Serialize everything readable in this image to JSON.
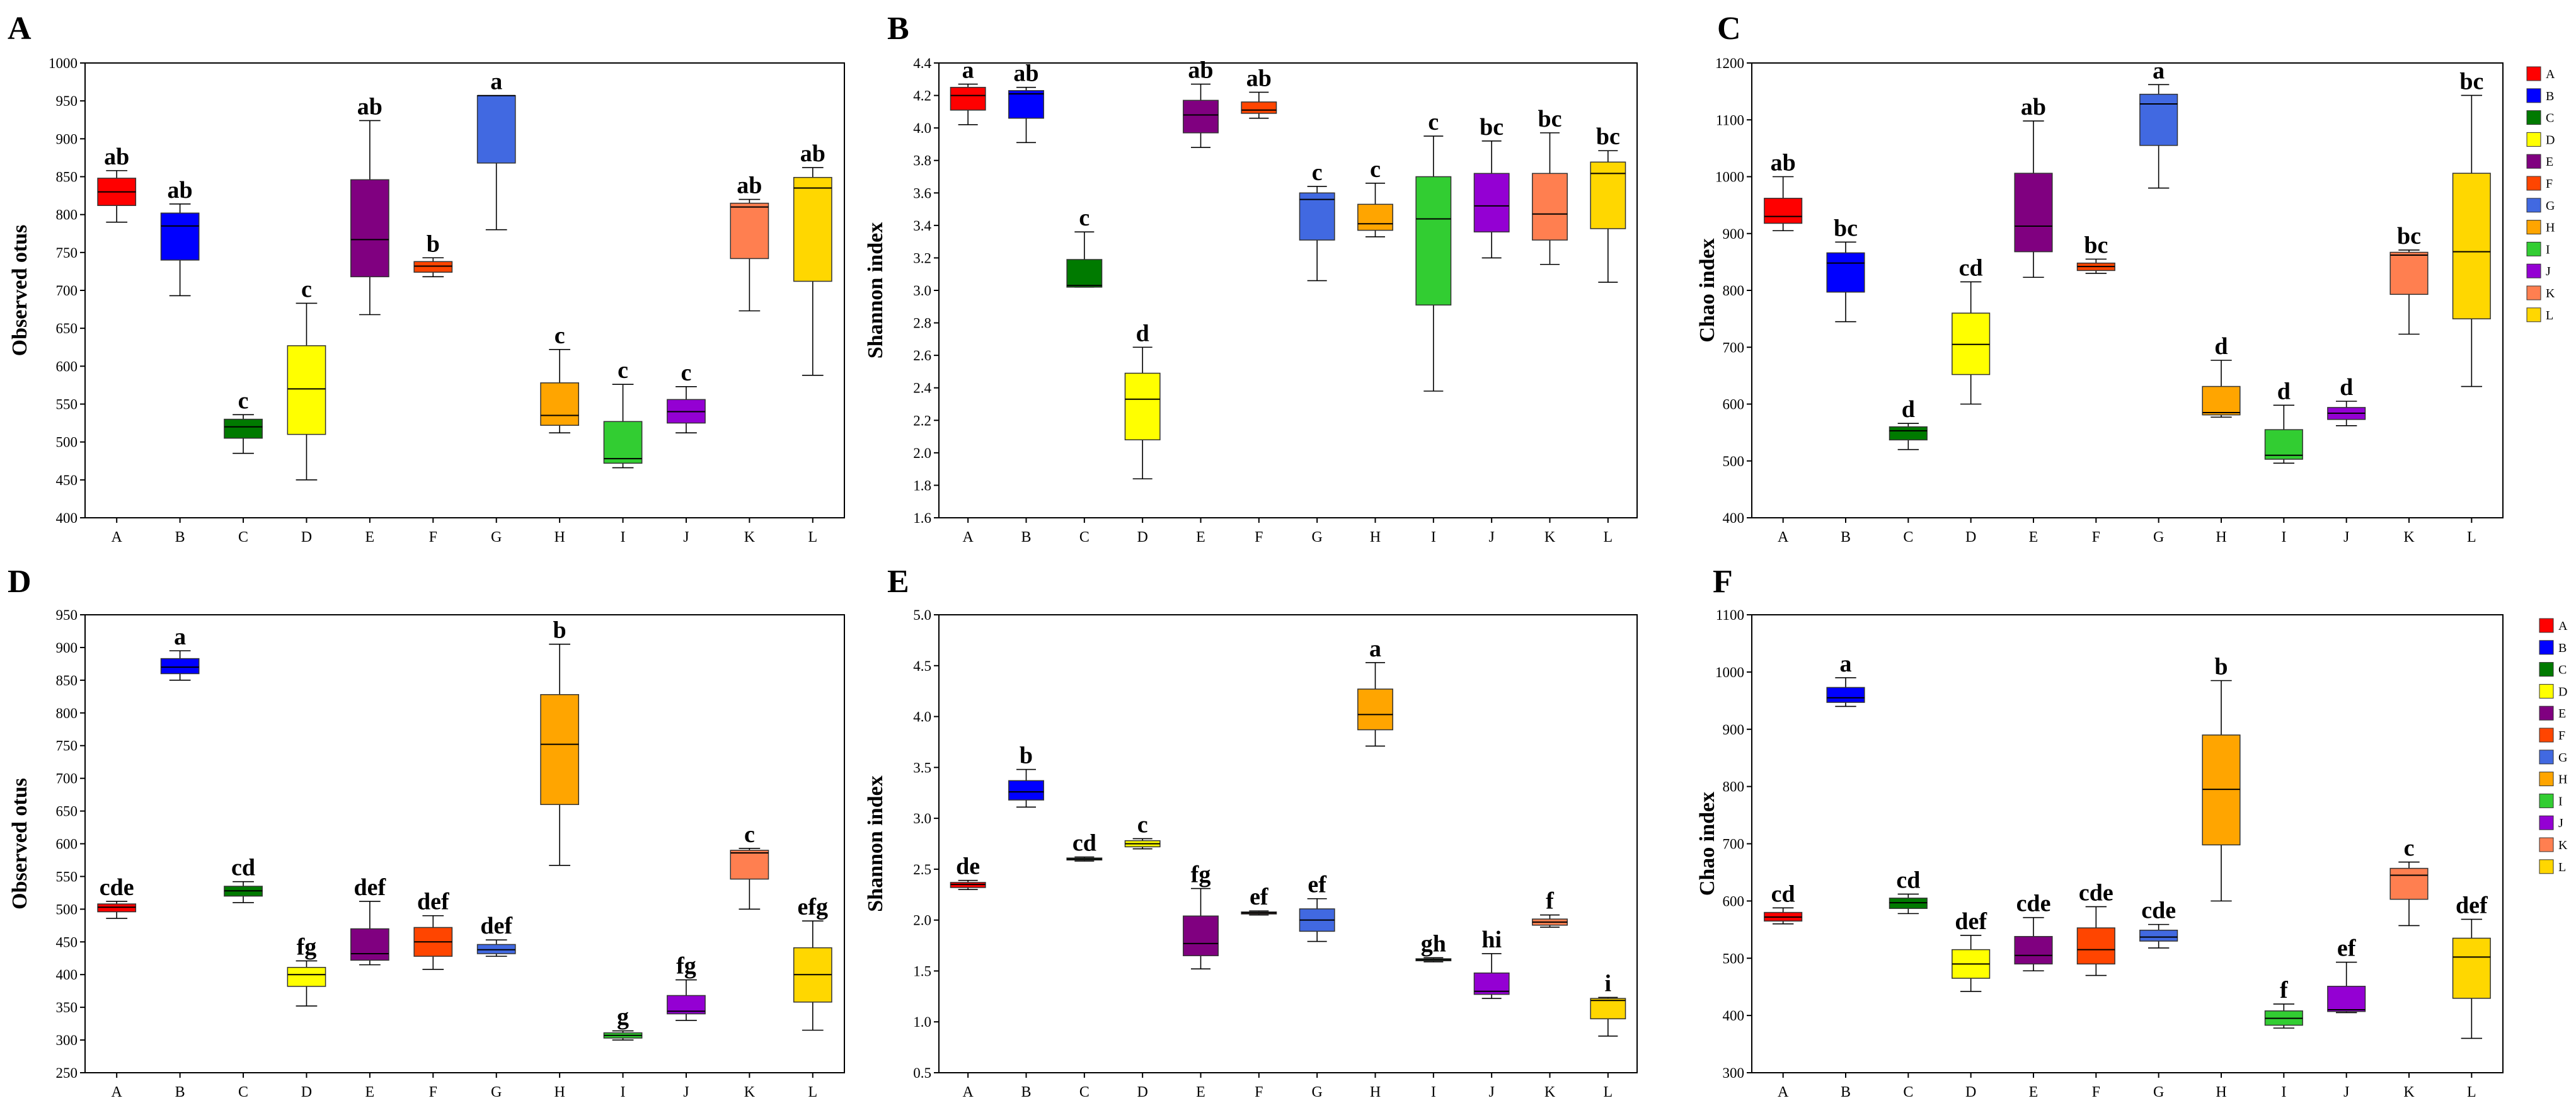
{
  "figure": {
    "panel_letters": [
      "A",
      "B",
      "C",
      "D",
      "E",
      "F"
    ],
    "legend_entries": [
      "A",
      "B",
      "C",
      "D",
      "E",
      "F",
      "G",
      "H",
      "I",
      "J",
      "K",
      "L"
    ],
    "group_colors": {
      "A": "#ff0000",
      "B": "#0000ff",
      "C": "#007a00",
      "D": "#ffff00",
      "E": "#800080",
      "F": "#ff4500",
      "G": "#4169e1",
      "H": "#ffa500",
      "I": "#32cd32",
      "J": "#9400d3",
      "K": "#ff7f50",
      "L": "#ffd700"
    }
  },
  "chart_data": [
    {
      "type": "box",
      "panel": "A",
      "ylabel": "Observed otus",
      "xlabel": "",
      "ylim": [
        400,
        1000
      ],
      "yticks": [
        400,
        450,
        500,
        550,
        600,
        650,
        700,
        750,
        800,
        850,
        900,
        950,
        1000
      ],
      "categories": [
        "A",
        "B",
        "C",
        "D",
        "E",
        "F",
        "G",
        "H",
        "I",
        "J",
        "K",
        "L"
      ],
      "boxes": [
        {
          "min": 790,
          "q1": 812,
          "median": 830,
          "q3": 848,
          "max": 858,
          "label": "ab"
        },
        {
          "min": 693,
          "q1": 740,
          "median": 785,
          "q3": 802,
          "max": 814,
          "label": "ab"
        },
        {
          "min": 485,
          "q1": 505,
          "median": 520,
          "q3": 530,
          "max": 536,
          "label": "c"
        },
        {
          "min": 450,
          "q1": 510,
          "median": 570,
          "q3": 627,
          "max": 683,
          "label": "c"
        },
        {
          "min": 668,
          "q1": 718,
          "median": 767,
          "q3": 846,
          "max": 924,
          "label": "ab"
        },
        {
          "min": 718,
          "q1": 724,
          "median": 732,
          "q3": 738,
          "max": 743,
          "label": "b"
        },
        {
          "min": 780,
          "q1": 868,
          "median": 957,
          "q3": 957,
          "max": 957,
          "label": "a"
        },
        {
          "min": 512,
          "q1": 522,
          "median": 535,
          "q3": 578,
          "max": 622,
          "label": "c"
        },
        {
          "min": 466,
          "q1": 472,
          "median": 478,
          "q3": 527,
          "max": 576,
          "label": "c"
        },
        {
          "min": 512,
          "q1": 525,
          "median": 540,
          "q3": 556,
          "max": 573,
          "label": "c"
        },
        {
          "min": 673,
          "q1": 742,
          "median": 810,
          "q3": 815,
          "max": 820,
          "label": "ab"
        },
        {
          "min": 588,
          "q1": 712,
          "median": 835,
          "q3": 849,
          "max": 862,
          "label": "ab"
        }
      ]
    },
    {
      "type": "box",
      "panel": "B",
      "ylabel": "Shannon index",
      "xlabel": "",
      "ylim": [
        1.6,
        4.4
      ],
      "yticks": [
        1.6,
        1.8,
        2.0,
        2.2,
        2.4,
        2.6,
        2.8,
        3.0,
        3.2,
        3.4,
        3.6,
        3.8,
        4.0,
        4.2,
        4.4
      ],
      "categories": [
        "A",
        "B",
        "C",
        "D",
        "E",
        "F",
        "G",
        "H",
        "I",
        "J",
        "K",
        "L"
      ],
      "boxes": [
        {
          "min": 4.02,
          "q1": 4.11,
          "median": 4.2,
          "q3": 4.25,
          "max": 4.27,
          "label": "a"
        },
        {
          "min": 3.91,
          "q1": 4.06,
          "median": 4.21,
          "q3": 4.23,
          "max": 4.25,
          "label": "ab"
        },
        {
          "min": 3.02,
          "q1": 3.02,
          "median": 3.03,
          "q3": 3.19,
          "max": 3.36,
          "label": "c"
        },
        {
          "min": 1.84,
          "q1": 2.08,
          "median": 2.33,
          "q3": 2.49,
          "max": 2.65,
          "label": "d"
        },
        {
          "min": 3.88,
          "q1": 3.97,
          "median": 4.08,
          "q3": 4.17,
          "max": 4.27,
          "label": "ab"
        },
        {
          "min": 4.06,
          "q1": 4.09,
          "median": 4.11,
          "q3": 4.16,
          "max": 4.22,
          "label": "ab"
        },
        {
          "min": 3.06,
          "q1": 3.31,
          "median": 3.56,
          "q3": 3.6,
          "max": 3.64,
          "label": "c"
        },
        {
          "min": 3.33,
          "q1": 3.37,
          "median": 3.41,
          "q3": 3.53,
          "max": 3.66,
          "label": "c"
        },
        {
          "min": 2.38,
          "q1": 2.91,
          "median": 3.44,
          "q3": 3.7,
          "max": 3.95,
          "label": "c"
        },
        {
          "min": 3.2,
          "q1": 3.36,
          "median": 3.52,
          "q3": 3.72,
          "max": 3.92,
          "label": "bc"
        },
        {
          "min": 3.16,
          "q1": 3.31,
          "median": 3.47,
          "q3": 3.72,
          "max": 3.97,
          "label": "bc"
        },
        {
          "min": 3.05,
          "q1": 3.38,
          "median": 3.72,
          "q3": 3.79,
          "max": 3.86,
          "label": "bc"
        }
      ]
    },
    {
      "type": "box",
      "panel": "C",
      "ylabel": "Chao index",
      "xlabel": "",
      "ylim": [
        400,
        1200
      ],
      "yticks": [
        400,
        500,
        600,
        700,
        800,
        900,
        1000,
        1100,
        1200
      ],
      "categories": [
        "A",
        "B",
        "C",
        "D",
        "E",
        "F",
        "G",
        "H",
        "I",
        "J",
        "K",
        "L"
      ],
      "boxes": [
        {
          "min": 905,
          "q1": 918,
          "median": 930,
          "q3": 962,
          "max": 1000,
          "label": "ab"
        },
        {
          "min": 745,
          "q1": 797,
          "median": 848,
          "q3": 866,
          "max": 885,
          "label": "bc"
        },
        {
          "min": 520,
          "q1": 537,
          "median": 553,
          "q3": 560,
          "max": 566,
          "label": "d"
        },
        {
          "min": 600,
          "q1": 652,
          "median": 705,
          "q3": 760,
          "max": 815,
          "label": "cd"
        },
        {
          "min": 823,
          "q1": 868,
          "median": 913,
          "q3": 1006,
          "max": 1098,
          "label": "ab"
        },
        {
          "min": 830,
          "q1": 835,
          "median": 842,
          "q3": 848,
          "max": 855,
          "label": "bc"
        },
        {
          "min": 980,
          "q1": 1055,
          "median": 1128,
          "q3": 1145,
          "max": 1162,
          "label": "a"
        },
        {
          "min": 577,
          "q1": 581,
          "median": 585,
          "q3": 631,
          "max": 677,
          "label": "d"
        },
        {
          "min": 496,
          "q1": 503,
          "median": 510,
          "q3": 555,
          "max": 598,
          "label": "d"
        },
        {
          "min": 562,
          "q1": 573,
          "median": 584,
          "q3": 594,
          "max": 605,
          "label": "d"
        },
        {
          "min": 723,
          "q1": 793,
          "median": 862,
          "q3": 867,
          "max": 871,
          "label": "bc"
        },
        {
          "min": 631,
          "q1": 750,
          "median": 868,
          "q3": 1006,
          "max": 1143,
          "label": "bc"
        }
      ]
    },
    {
      "type": "box",
      "panel": "D",
      "ylabel": "Observed otus",
      "xlabel": "",
      "ylim": [
        250,
        950
      ],
      "yticks": [
        250,
        300,
        350,
        400,
        450,
        500,
        550,
        600,
        650,
        700,
        750,
        800,
        850,
        900,
        950
      ],
      "categories": [
        "A",
        "B",
        "C",
        "D",
        "E",
        "F",
        "G",
        "H",
        "I",
        "J",
        "K",
        "L"
      ],
      "boxes": [
        {
          "min": 486,
          "q1": 496,
          "median": 503,
          "q3": 508,
          "max": 512,
          "label": "cde"
        },
        {
          "min": 850,
          "q1": 860,
          "median": 870,
          "q3": 883,
          "max": 895,
          "label": "a"
        },
        {
          "min": 510,
          "q1": 520,
          "median": 528,
          "q3": 535,
          "max": 542,
          "label": "cd"
        },
        {
          "min": 352,
          "q1": 382,
          "median": 400,
          "q3": 411,
          "max": 421,
          "label": "fg"
        },
        {
          "min": 415,
          "q1": 422,
          "median": 432,
          "q3": 470,
          "max": 512,
          "label": "def"
        },
        {
          "min": 408,
          "q1": 428,
          "median": 450,
          "q3": 472,
          "max": 490,
          "label": "def"
        },
        {
          "min": 428,
          "q1": 432,
          "median": 438,
          "q3": 446,
          "max": 453,
          "label": "def"
        },
        {
          "min": 567,
          "q1": 660,
          "median": 752,
          "q3": 828,
          "max": 905,
          "label": "b"
        },
        {
          "min": 300,
          "q1": 303,
          "median": 307,
          "q3": 311,
          "max": 314,
          "label": "g"
        },
        {
          "min": 330,
          "q1": 340,
          "median": 344,
          "q3": 368,
          "max": 392,
          "label": "fg"
        },
        {
          "min": 500,
          "q1": 546,
          "median": 586,
          "q3": 590,
          "max": 593,
          "label": "c"
        },
        {
          "min": 315,
          "q1": 358,
          "median": 400,
          "q3": 441,
          "max": 482,
          "label": "efg"
        }
      ]
    },
    {
      "type": "box",
      "panel": "E",
      "ylabel": "Shannon index",
      "xlabel": "",
      "ylim": [
        0.5,
        5.0
      ],
      "yticks": [
        0.5,
        1.0,
        1.5,
        2.0,
        2.5,
        3.0,
        3.5,
        4.0,
        4.5,
        5.0
      ],
      "categories": [
        "A",
        "B",
        "C",
        "D",
        "E",
        "F",
        "G",
        "H",
        "I",
        "J",
        "K",
        "L"
      ],
      "boxes": [
        {
          "min": 2.3,
          "q1": 2.32,
          "median": 2.35,
          "q3": 2.37,
          "max": 2.39,
          "label": "de"
        },
        {
          "min": 3.11,
          "q1": 3.18,
          "median": 3.26,
          "q3": 3.37,
          "max": 3.48,
          "label": "b"
        },
        {
          "min": 2.58,
          "q1": 2.59,
          "median": 2.6,
          "q3": 2.61,
          "max": 2.62,
          "label": "cd"
        },
        {
          "min": 2.7,
          "q1": 2.72,
          "median": 2.75,
          "q3": 2.78,
          "max": 2.8,
          "label": "c"
        },
        {
          "min": 1.52,
          "q1": 1.65,
          "median": 1.77,
          "q3": 2.04,
          "max": 2.31,
          "label": "fg"
        },
        {
          "min": 2.05,
          "q1": 2.06,
          "median": 2.07,
          "q3": 2.08,
          "max": 2.09,
          "label": "ef"
        },
        {
          "min": 1.79,
          "q1": 1.89,
          "median": 2.0,
          "q3": 2.11,
          "max": 2.21,
          "label": "ef"
        },
        {
          "min": 3.71,
          "q1": 3.87,
          "median": 4.02,
          "q3": 4.27,
          "max": 4.53,
          "label": "a"
        },
        {
          "min": 1.59,
          "q1": 1.6,
          "median": 1.61,
          "q3": 1.62,
          "max": 1.63,
          "label": "gh"
        },
        {
          "min": 1.23,
          "q1": 1.27,
          "median": 1.3,
          "q3": 1.48,
          "max": 1.67,
          "label": "hi"
        },
        {
          "min": 1.93,
          "q1": 1.95,
          "median": 1.98,
          "q3": 2.01,
          "max": 2.05,
          "label": "f"
        },
        {
          "min": 0.86,
          "q1": 1.03,
          "median": 1.21,
          "q3": 1.23,
          "max": 1.24,
          "label": "i"
        }
      ]
    },
    {
      "type": "box",
      "panel": "F",
      "ylabel": "Chao index",
      "xlabel": "",
      "ylim": [
        300,
        1100
      ],
      "yticks": [
        300,
        400,
        500,
        600,
        700,
        800,
        900,
        1000,
        1100
      ],
      "categories": [
        "A",
        "B",
        "C",
        "D",
        "E",
        "F",
        "G",
        "H",
        "I",
        "J",
        "K",
        "L"
      ],
      "boxes": [
        {
          "min": 560,
          "q1": 565,
          "median": 572,
          "q3": 580,
          "max": 588,
          "label": "cd"
        },
        {
          "min": 940,
          "q1": 947,
          "median": 955,
          "q3": 973,
          "max": 990,
          "label": "a"
        },
        {
          "min": 578,
          "q1": 587,
          "median": 597,
          "q3": 605,
          "max": 612,
          "label": "cd"
        },
        {
          "min": 442,
          "q1": 465,
          "median": 490,
          "q3": 515,
          "max": 540,
          "label": "def"
        },
        {
          "min": 478,
          "q1": 490,
          "median": 505,
          "q3": 538,
          "max": 571,
          "label": "cde"
        },
        {
          "min": 470,
          "q1": 490,
          "median": 515,
          "q3": 553,
          "max": 590,
          "label": "cde"
        },
        {
          "min": 518,
          "q1": 530,
          "median": 537,
          "q3": 549,
          "max": 559,
          "label": "cde"
        },
        {
          "min": 600,
          "q1": 698,
          "median": 795,
          "q3": 890,
          "max": 985,
          "label": "b"
        },
        {
          "min": 378,
          "q1": 383,
          "median": 395,
          "q3": 408,
          "max": 420,
          "label": "f"
        },
        {
          "min": 405,
          "q1": 407,
          "median": 410,
          "q3": 451,
          "max": 493,
          "label": "ef"
        },
        {
          "min": 557,
          "q1": 603,
          "median": 645,
          "q3": 657,
          "max": 668,
          "label": "c"
        },
        {
          "min": 360,
          "q1": 430,
          "median": 502,
          "q3": 535,
          "max": 568,
          "label": "def"
        }
      ]
    }
  ]
}
